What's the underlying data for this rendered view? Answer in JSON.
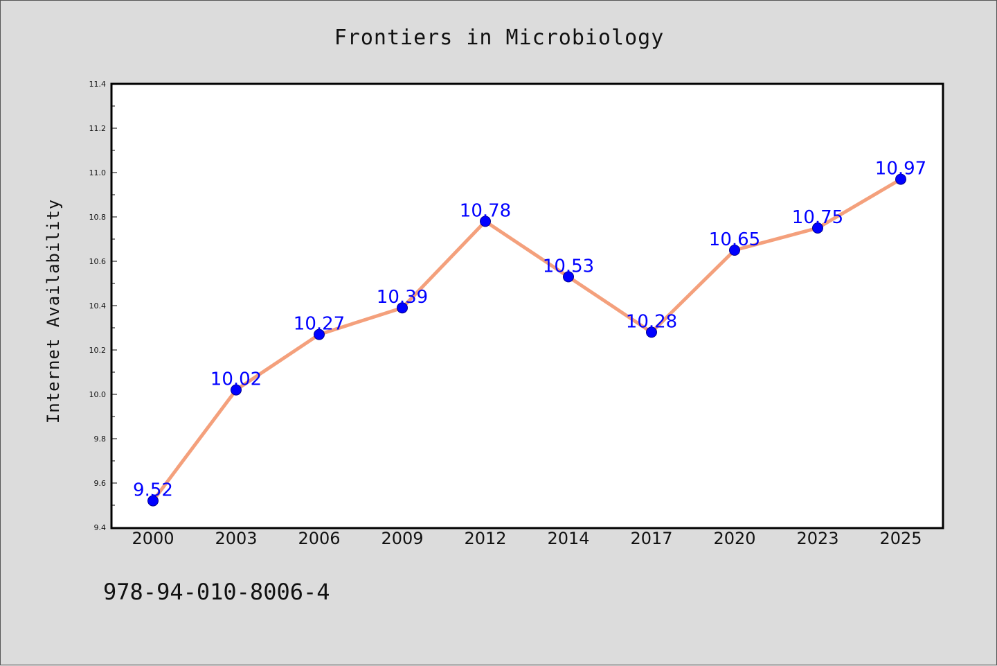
{
  "chart_data": {
    "type": "line",
    "title": "Frontiers in Microbiology",
    "xlabel": "",
    "ylabel": "Internet Availability",
    "categories": [
      "2000",
      "2003",
      "2006",
      "2009",
      "2012",
      "2014",
      "2017",
      "2020",
      "2023",
      "2025"
    ],
    "series": [
      {
        "values": [
          9.52,
          10.02,
          10.27,
          10.39,
          10.78,
          10.53,
          10.28,
          10.65,
          10.75,
          10.97
        ],
        "data_labels": [
          "9.52",
          "10.02",
          "10.27",
          "10.39",
          "10.78",
          "10.53",
          "10.28",
          "10.65",
          "10.75",
          "10.97"
        ]
      }
    ],
    "ylim": [
      9.4,
      11.4
    ],
    "yticks": [
      "9.4",
      "9.6",
      "9.8",
      "10.0",
      "10.2",
      "10.4",
      "10.6",
      "10.8",
      "11.0",
      "11.2",
      "11.4"
    ],
    "grid": false,
    "colors": {
      "line": "#f4a07c",
      "marker": "#0000ff",
      "label": "#0000ff",
      "plot_background": "#ffffff",
      "figure_background": "#dcdcdc"
    }
  },
  "footer_text": "978-94-010-8006-4"
}
